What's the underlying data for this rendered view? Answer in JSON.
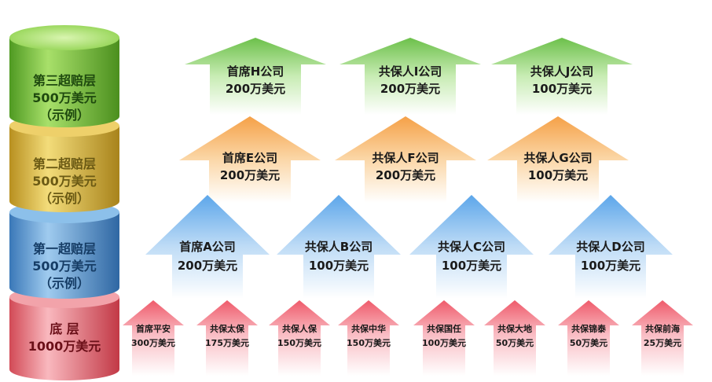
{
  "layers": [
    {
      "line1": "第三超赔层",
      "line2": "500万美元",
      "line3": "（示例）",
      "color": "#7cc34a",
      "text_color": "#1f4a0f"
    },
    {
      "line1": "第二超赔层",
      "line2": "500万美元",
      "line3": "（示例）",
      "color": "#dcc04a",
      "text_color": "#5b4a10"
    },
    {
      "line1": "第一超赔层",
      "line2": "500万美元",
      "line3": "（示例）",
      "color": "#5f9fd6",
      "text_color": "#14365c"
    },
    {
      "line1": "底 层",
      "line2": "1000万美元",
      "line3": "",
      "color": "#ef8c95",
      "text_color": "#6b0f18"
    }
  ],
  "arrows_top": [
    {
      "name": "首席H公司",
      "amount": "200万美元"
    },
    {
      "name": "共保人I公司",
      "amount": "200万美元"
    },
    {
      "name": "共保人J公司",
      "amount": "100万美元"
    }
  ],
  "arrows_second": [
    {
      "name": "首席E公司",
      "amount": "200万美元"
    },
    {
      "name": "共保人F公司",
      "amount": "200万美元"
    },
    {
      "name": "共保人G公司",
      "amount": "100万美元"
    }
  ],
  "arrows_first": [
    {
      "name": "首席A公司",
      "amount": "200万美元"
    },
    {
      "name": "共保人B公司",
      "amount": "100万美元"
    },
    {
      "name": "共保人C公司",
      "amount": "100万美元"
    },
    {
      "name": "共保人D公司",
      "amount": "100万美元"
    }
  ],
  "arrows_base": [
    {
      "name": "首席平安",
      "amount": "300万美元"
    },
    {
      "name": "共保太保",
      "amount": "175万美元"
    },
    {
      "name": "共保人保",
      "amount": "150万美元"
    },
    {
      "name": "共保中华",
      "amount": "150万美元"
    },
    {
      "name": "共保国任",
      "amount": "100万美元"
    },
    {
      "name": "共保大地",
      "amount": "50万美元"
    },
    {
      "name": "共保锦泰",
      "amount": "50万美元"
    },
    {
      "name": "共保前海",
      "amount": "25万美元"
    }
  ],
  "colors": {
    "green": "#7cc34a",
    "yellow": "#f5a64a",
    "blue": "#68aee8",
    "pink": "#ef6f7c"
  }
}
